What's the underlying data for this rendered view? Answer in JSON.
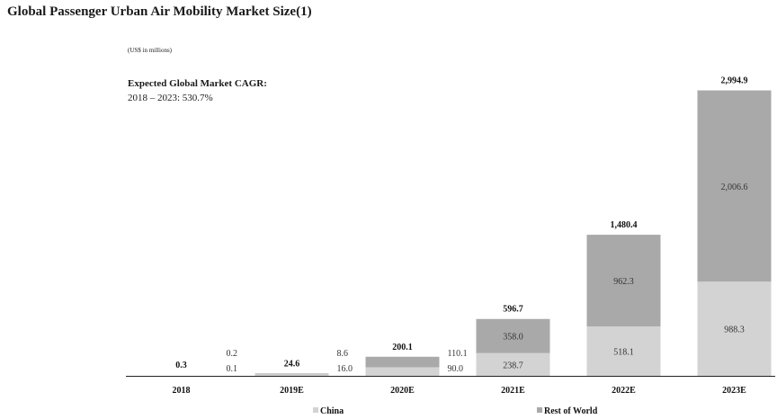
{
  "title": "Global Passenger Urban Air Mobility Market Size(1)",
  "unit_note": "(US$ in millions)",
  "cagr": {
    "label": "Expected Global Market CAGR:",
    "value": "2018 – 2023: 530.7%"
  },
  "colors": {
    "china": "#d3d3d3",
    "rest_of_world": "#a9a9a9",
    "axis": "#222222"
  },
  "chart_data": {
    "type": "bar",
    "stacked": true,
    "categories": [
      "2018",
      "2019E",
      "2020E",
      "2021E",
      "2022E",
      "2023E"
    ],
    "series": [
      {
        "name": "China",
        "values": [
          0.1,
          16.0,
          90.0,
          238.7,
          518.1,
          988.3
        ],
        "labels": [
          "0.1",
          "16.0",
          "90.0",
          "238.7",
          "518.1",
          "988.3"
        ]
      },
      {
        "name": "Rest of World",
        "values": [
          0.2,
          8.6,
          110.1,
          358.0,
          962.3,
          2006.6
        ],
        "labels": [
          "0.2",
          "8.6",
          "110.1",
          "358.0",
          "962.3",
          "2,006.6"
        ]
      }
    ],
    "totals": [
      0.3,
      24.6,
      200.1,
      596.7,
      1480.4,
      2994.9
    ],
    "total_labels": [
      "0.3",
      "24.6",
      "200.1",
      "596.7",
      "1,480.4",
      "2,994.9"
    ],
    "ylim": [
      0,
      3000
    ],
    "legend_position": "bottom",
    "grid": false
  }
}
